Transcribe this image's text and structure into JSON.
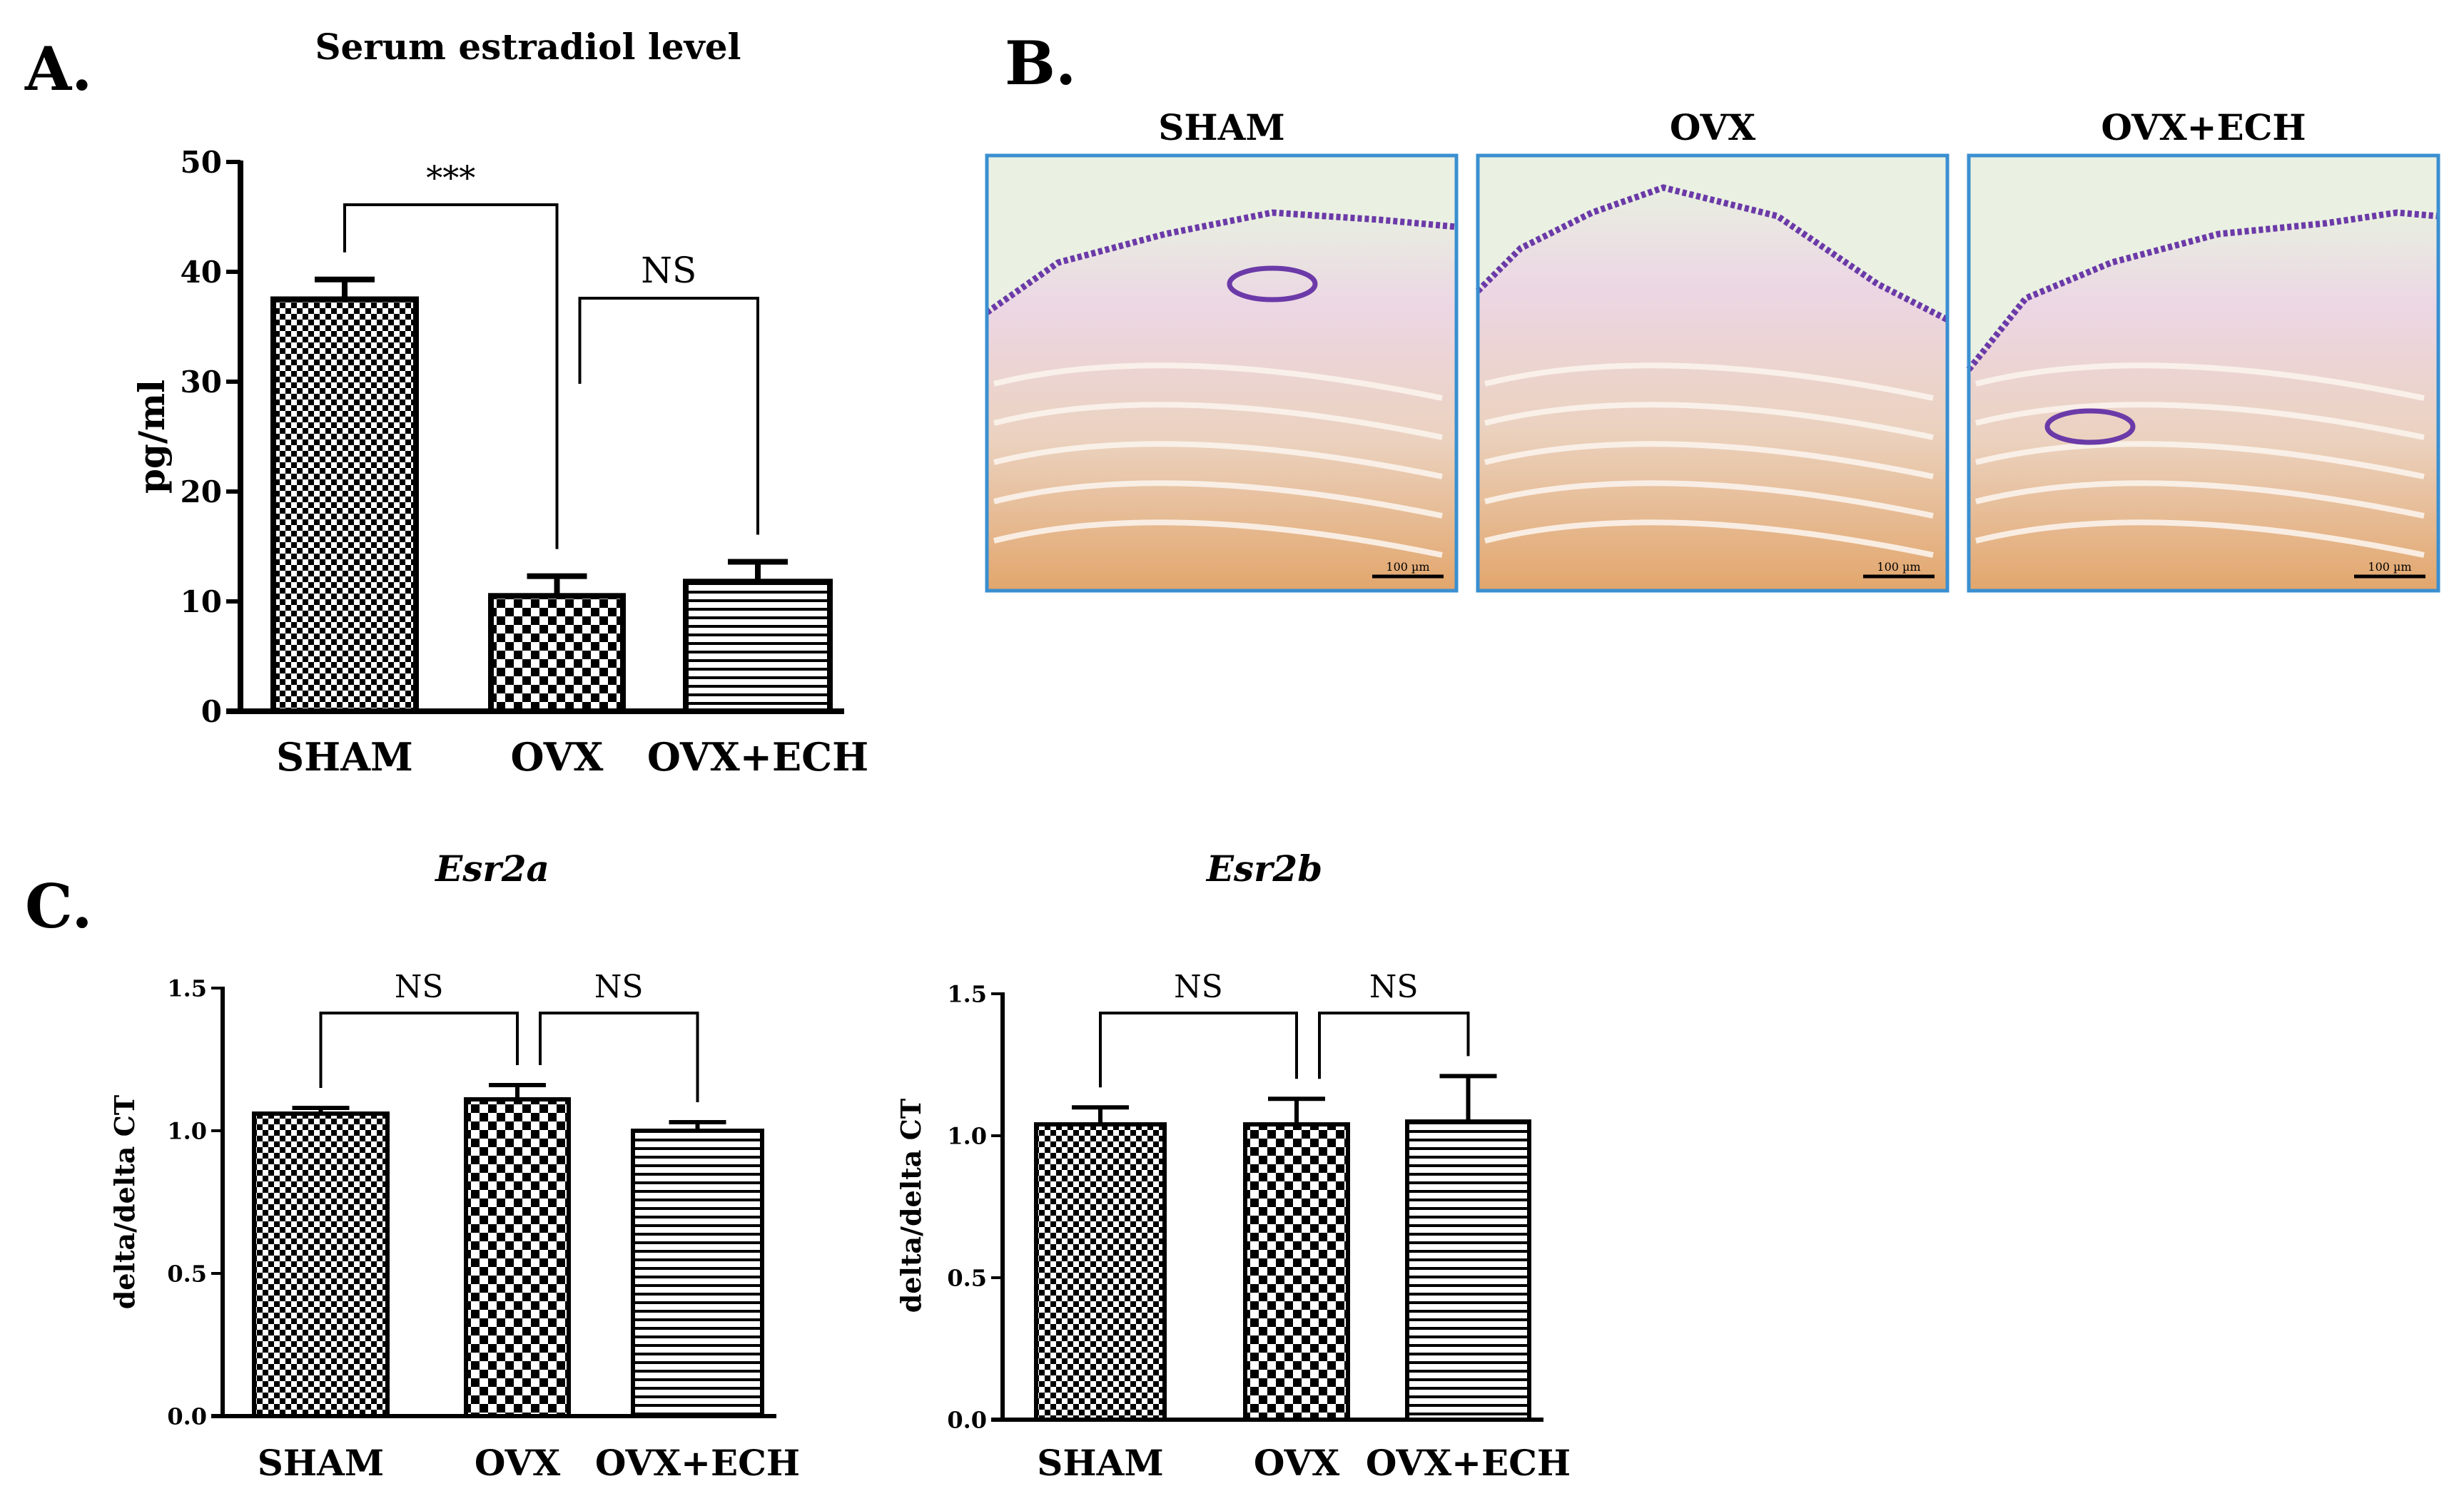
{
  "panels": {
    "a": {
      "letter": "A."
    },
    "b": {
      "letter": "B."
    },
    "c": {
      "letter": "C."
    }
  },
  "micrographs": [
    {
      "title": "SHAM",
      "scale_label": "100 µm"
    },
    {
      "title": "OVX",
      "scale_label": "100 µm"
    },
    {
      "title": "OVX+ECH",
      "scale_label": "100 µm"
    }
  ],
  "colors": {
    "bar_outline": "#000000",
    "micrograph_border": "#3a8fd0",
    "tissue_base": "#ebd2bf",
    "tissue_stain": "#e2a66c",
    "epithelium": "#6b3aa8"
  },
  "chart_data": [
    {
      "id": "serum",
      "type": "bar",
      "title": "Serum estradiol level",
      "ylabel": "pg/ml",
      "categories": [
        "SHAM",
        "OVX",
        "OVX+ECH"
      ],
      "values": [
        37.5,
        10.5,
        11.8
      ],
      "errors": [
        1.8,
        1.8,
        1.8
      ],
      "patterns": [
        "checker-fine",
        "checker-bold",
        "horizontal-lines"
      ],
      "ylim": [
        0,
        50
      ],
      "yticks": [
        0,
        10,
        20,
        30,
        40,
        50
      ],
      "comparisons": [
        {
          "from": 0,
          "to": 1,
          "label": "***"
        },
        {
          "from": 1,
          "to": 2,
          "label": "NS"
        }
      ]
    },
    {
      "id": "esr2a",
      "type": "bar",
      "title": "Esr2a",
      "ylabel": "delta/delta CT",
      "categories": [
        "SHAM",
        "OVX",
        "OVX+ECH"
      ],
      "values": [
        1.06,
        1.11,
        1.0
      ],
      "errors": [
        0.02,
        0.05,
        0.03
      ],
      "patterns": [
        "checker-fine",
        "checker-bold",
        "horizontal-lines"
      ],
      "ylim": [
        0,
        1.5
      ],
      "yticks": [
        "0.0",
        "0.5",
        "1.0",
        "1.5"
      ],
      "comparisons": [
        {
          "from": 0,
          "to": 1,
          "label": "NS"
        },
        {
          "from": 1,
          "to": 2,
          "label": "NS"
        }
      ]
    },
    {
      "id": "esr2b",
      "type": "bar",
      "title": "Esr2b",
      "ylabel": "delta/delta CT",
      "categories": [
        "SHAM",
        "OVX",
        "OVX+ECH"
      ],
      "values": [
        1.04,
        1.04,
        1.05
      ],
      "errors": [
        0.06,
        0.09,
        0.16
      ],
      "patterns": [
        "checker-fine",
        "checker-bold",
        "horizontal-lines"
      ],
      "ylim": [
        0,
        1.5
      ],
      "yticks": [
        "0.0",
        "0.5",
        "1.0",
        "1.5"
      ],
      "comparisons": [
        {
          "from": 0,
          "to": 1,
          "label": "NS"
        },
        {
          "from": 1,
          "to": 2,
          "label": "NS"
        }
      ]
    }
  ]
}
